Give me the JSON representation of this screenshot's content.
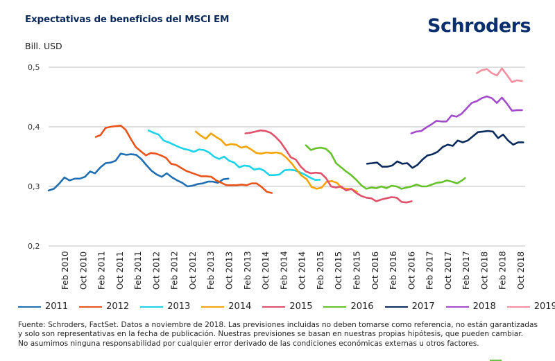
{
  "header": {
    "title": "Expectativas de beneficios del MSCI EM",
    "unit_label": "Bill. USD",
    "logo_text": "Schroders"
  },
  "footnote": {
    "lines": [
      "Fuente: Schroders, FactSet. Datos a noviembre de 2018. Las previsiones incluidas no deben tomarse como referencia, no están garantizadas",
      "y solo son representativas en la fecha de publicación. Nuestras previsiones se basan en nuestras propias hipótesis, que pueden cambiar.",
      "No asumimos ninguna responsabilidad por cualquier error derivado de las condiciones económicas externas u otros factores."
    ]
  },
  "chart_data": {
    "type": "line",
    "title": "Expectativas de beneficios del MSCI EM",
    "ylabel": "Bill. USD",
    "xlabel": "",
    "ylim": [
      0.2,
      0.5
    ],
    "yticks": [
      "0,2",
      "0,3",
      "0,4",
      "0,5"
    ],
    "ytick_values": [
      0.2,
      0.3,
      0.4,
      0.5
    ],
    "grid": "horizontal",
    "legend_position": "bottom",
    "x_unit": "months since Jan 2010 (approximate)",
    "xlim": [
      0,
      108
    ],
    "xtick_labels": [
      "Feb 2010",
      "Oct 2010",
      "Feb 2011",
      "Oct 2011",
      "Feb 2011",
      "Oct 2012",
      "Feb 2012",
      "Oct 2012",
      "Feb 2013",
      "Oct 2013",
      "Feb 2013",
      "Oct 2014",
      "Feb 2014",
      "Oct 2014",
      "Feb 2015",
      "Oct 2015",
      "Feb 2015",
      "Oct 2016",
      "Feb 2016",
      "Oct 2016",
      "Feb 2017",
      "Oct 2017",
      "Feb 2017",
      "Oct 2018",
      "Feb 2018",
      "Oct 2018"
    ],
    "series": [
      {
        "name": "2011",
        "color": "#1f6fb2",
        "points": [
          [
            0,
            0.293
          ],
          [
            1.4,
            0.296
          ],
          [
            2.8,
            0.305
          ],
          [
            4.1,
            0.315
          ],
          [
            5.4,
            0.31
          ],
          [
            6.8,
            0.313
          ],
          [
            8.1,
            0.313
          ],
          [
            9.4,
            0.316
          ],
          [
            10.7,
            0.325
          ],
          [
            12,
            0.322
          ],
          [
            13.4,
            0.332
          ],
          [
            14.7,
            0.339
          ],
          [
            16,
            0.34
          ],
          [
            17.3,
            0.343
          ],
          [
            18.6,
            0.355
          ],
          [
            20,
            0.353
          ],
          [
            21.3,
            0.354
          ],
          [
            22.6,
            0.353
          ],
          [
            23.9,
            0.346
          ],
          [
            25.2,
            0.336
          ],
          [
            26.6,
            0.326
          ],
          [
            27.9,
            0.32
          ],
          [
            29.2,
            0.316
          ],
          [
            30.5,
            0.322
          ],
          [
            31.9,
            0.315
          ],
          [
            33.2,
            0.31
          ],
          [
            34.5,
            0.306
          ],
          [
            35.8,
            0.3
          ],
          [
            37.1,
            0.301
          ],
          [
            38.5,
            0.304
          ],
          [
            39.8,
            0.305
          ],
          [
            41.1,
            0.308
          ],
          [
            42.4,
            0.308
          ],
          [
            43.7,
            0.306
          ],
          [
            45.1,
            0.312
          ],
          [
            46.4,
            0.313
          ]
        ]
      },
      {
        "name": "2012",
        "color": "#e8541a",
        "points": [
          [
            12.2,
            0.383
          ],
          [
            13.4,
            0.386
          ],
          [
            14.7,
            0.398
          ],
          [
            16,
            0.4
          ],
          [
            17.3,
            0.401
          ],
          [
            18.6,
            0.402
          ],
          [
            19.9,
            0.395
          ],
          [
            21.2,
            0.38
          ],
          [
            22.5,
            0.366
          ],
          [
            23.8,
            0.359
          ],
          [
            25.1,
            0.352
          ],
          [
            26.4,
            0.356
          ],
          [
            27.7,
            0.355
          ],
          [
            29,
            0.352
          ],
          [
            30.3,
            0.348
          ],
          [
            31.6,
            0.338
          ],
          [
            32.9,
            0.336
          ],
          [
            34.2,
            0.331
          ],
          [
            35.5,
            0.326
          ],
          [
            36.8,
            0.323
          ],
          [
            38.1,
            0.32
          ],
          [
            39.4,
            0.317
          ],
          [
            40.7,
            0.317
          ],
          [
            42,
            0.316
          ],
          [
            43.3,
            0.31
          ],
          [
            44.6,
            0.306
          ],
          [
            45.9,
            0.302
          ],
          [
            47.2,
            0.302
          ],
          [
            48.5,
            0.302
          ],
          [
            49.8,
            0.303
          ],
          [
            51.1,
            0.302
          ],
          [
            52.4,
            0.305
          ],
          [
            53.7,
            0.305
          ],
          [
            55,
            0.299
          ],
          [
            56.3,
            0.291
          ],
          [
            57.6,
            0.289
          ]
        ]
      },
      {
        "name": "2013",
        "color": "#1ad3e8",
        "points": [
          [
            25.8,
            0.394
          ],
          [
            27.1,
            0.39
          ],
          [
            28.4,
            0.387
          ],
          [
            29.7,
            0.377
          ],
          [
            31,
            0.374
          ],
          [
            32.3,
            0.37
          ],
          [
            33.6,
            0.366
          ],
          [
            34.9,
            0.363
          ],
          [
            36.2,
            0.361
          ],
          [
            37.5,
            0.358
          ],
          [
            38.8,
            0.362
          ],
          [
            40.1,
            0.361
          ],
          [
            41.4,
            0.357
          ],
          [
            42.7,
            0.35
          ],
          [
            44,
            0.346
          ],
          [
            45.3,
            0.35
          ],
          [
            46.6,
            0.343
          ],
          [
            47.9,
            0.34
          ],
          [
            49.2,
            0.332
          ],
          [
            50.5,
            0.335
          ],
          [
            51.8,
            0.334
          ],
          [
            53.1,
            0.328
          ],
          [
            54.4,
            0.33
          ],
          [
            55.7,
            0.326
          ],
          [
            57,
            0.319
          ],
          [
            58.3,
            0.319
          ],
          [
            59.6,
            0.32
          ],
          [
            60.9,
            0.327
          ],
          [
            62.2,
            0.328
          ],
          [
            63.5,
            0.327
          ],
          [
            64.8,
            0.324
          ],
          [
            66.1,
            0.32
          ],
          [
            67.4,
            0.315
          ],
          [
            68.7,
            0.311
          ],
          [
            70,
            0.311
          ]
        ]
      },
      {
        "name": "2014",
        "color": "#f5a300",
        "points": [
          [
            38,
            0.392
          ],
          [
            39.3,
            0.385
          ],
          [
            40.6,
            0.38
          ],
          [
            41.9,
            0.389
          ],
          [
            43.2,
            0.383
          ],
          [
            44.5,
            0.378
          ],
          [
            45.8,
            0.369
          ],
          [
            47.1,
            0.371
          ],
          [
            48.4,
            0.37
          ],
          [
            49.7,
            0.365
          ],
          [
            51,
            0.367
          ],
          [
            52.3,
            0.362
          ],
          [
            53.6,
            0.356
          ],
          [
            54.9,
            0.355
          ],
          [
            56.2,
            0.357
          ],
          [
            57.5,
            0.356
          ],
          [
            58.8,
            0.357
          ],
          [
            60.1,
            0.355
          ],
          [
            61.4,
            0.348
          ],
          [
            62.7,
            0.339
          ],
          [
            64,
            0.328
          ],
          [
            65.3,
            0.318
          ],
          [
            66.6,
            0.312
          ],
          [
            67.9,
            0.299
          ],
          [
            69.2,
            0.296
          ],
          [
            70.5,
            0.298
          ],
          [
            71.8,
            0.308
          ],
          [
            73.1,
            0.309
          ],
          [
            74.4,
            0.306
          ],
          [
            75.7,
            0.297
          ],
          [
            77,
            0.296
          ],
          [
            78.3,
            0.295
          ],
          [
            79.6,
            0.291
          ]
        ]
      },
      {
        "name": "2015",
        "color": "#e0506a",
        "points": [
          [
            50.8,
            0.389
          ],
          [
            52.1,
            0.39
          ],
          [
            53.4,
            0.392
          ],
          [
            54.7,
            0.394
          ],
          [
            56,
            0.393
          ],
          [
            57.3,
            0.39
          ],
          [
            58.6,
            0.383
          ],
          [
            59.9,
            0.374
          ],
          [
            61.2,
            0.362
          ],
          [
            62.5,
            0.349
          ],
          [
            63.8,
            0.345
          ],
          [
            65.1,
            0.333
          ],
          [
            66.4,
            0.325
          ],
          [
            67.7,
            0.322
          ],
          [
            69,
            0.323
          ],
          [
            70.3,
            0.322
          ],
          [
            71.6,
            0.314
          ],
          [
            72.9,
            0.3
          ],
          [
            74.2,
            0.298
          ],
          [
            75.5,
            0.3
          ],
          [
            76.8,
            0.293
          ],
          [
            78.1,
            0.296
          ],
          [
            79.4,
            0.289
          ],
          [
            80.7,
            0.284
          ],
          [
            82,
            0.281
          ],
          [
            83.3,
            0.28
          ],
          [
            84.6,
            0.275
          ],
          [
            85.9,
            0.278
          ],
          [
            87.2,
            0.28
          ],
          [
            88.5,
            0.282
          ],
          [
            89.8,
            0.281
          ],
          [
            91.1,
            0.274
          ],
          [
            92.4,
            0.273
          ],
          [
            93.7,
            0.275
          ]
        ]
      },
      {
        "name": "2016",
        "color": "#66c22a",
        "points": [
          [
            66.4,
            0.369
          ],
          [
            67.7,
            0.361
          ],
          [
            69,
            0.364
          ],
          [
            70.3,
            0.365
          ],
          [
            71.6,
            0.363
          ],
          [
            72.9,
            0.355
          ],
          [
            74.2,
            0.339
          ],
          [
            75.5,
            0.332
          ],
          [
            76.8,
            0.325
          ],
          [
            78.1,
            0.319
          ],
          [
            79.4,
            0.311
          ],
          [
            80.7,
            0.302
          ],
          [
            82,
            0.296
          ],
          [
            83.3,
            0.298
          ],
          [
            84.6,
            0.297
          ],
          [
            85.9,
            0.3
          ],
          [
            87.2,
            0.297
          ],
          [
            88.5,
            0.301
          ],
          [
            89.8,
            0.3
          ],
          [
            91.1,
            0.296
          ],
          [
            92.4,
            0.298
          ],
          [
            93.7,
            0.3
          ],
          [
            95,
            0.303
          ],
          [
            96.3,
            0.3
          ],
          [
            97.6,
            0.3
          ],
          [
            98.9,
            0.303
          ],
          [
            100.2,
            0.306
          ],
          [
            101.5,
            0.307
          ],
          [
            102.8,
            0.31
          ],
          [
            104.1,
            0.308
          ],
          [
            105.4,
            0.305
          ],
          [
            106.7,
            0.31
          ],
          [
            107.5,
            0.314
          ]
        ]
      },
      {
        "name": "2017",
        "color": "#0b2a5c",
        "points": [
          [
            82.2,
            0.338
          ],
          [
            83.5,
            0.339
          ],
          [
            84.8,
            0.34
          ],
          [
            86.1,
            0.333
          ],
          [
            87.4,
            0.333
          ],
          [
            88.7,
            0.335
          ],
          [
            90,
            0.342
          ],
          [
            91.3,
            0.338
          ],
          [
            92.6,
            0.339
          ],
          [
            93.9,
            0.331
          ],
          [
            95.2,
            0.336
          ],
          [
            96.5,
            0.345
          ],
          [
            97.8,
            0.352
          ],
          [
            99.1,
            0.354
          ],
          [
            100.4,
            0.358
          ],
          [
            101.7,
            0.366
          ],
          [
            103,
            0.37
          ],
          [
            104.3,
            0.368
          ],
          [
            105.6,
            0.377
          ],
          [
            106.9,
            0.374
          ],
          [
            108.2,
            0.377
          ],
          [
            109.5,
            0.384
          ],
          [
            110.8,
            0.391
          ],
          [
            112.1,
            0.392
          ],
          [
            113.4,
            0.393
          ],
          [
            114.7,
            0.392
          ],
          [
            116,
            0.381
          ],
          [
            117.3,
            0.387
          ],
          [
            118.6,
            0.377
          ],
          [
            119.9,
            0.37
          ],
          [
            121.2,
            0.374
          ],
          [
            122.5,
            0.374
          ]
        ]
      },
      {
        "name": "2018",
        "color": "#a24ccc",
        "points": [
          [
            93.6,
            0.389
          ],
          [
            94.9,
            0.392
          ],
          [
            96.2,
            0.393
          ],
          [
            97.5,
            0.399
          ],
          [
            98.8,
            0.404
          ],
          [
            100.1,
            0.41
          ],
          [
            101.4,
            0.409
          ],
          [
            102.7,
            0.409
          ],
          [
            104,
            0.419
          ],
          [
            105.3,
            0.417
          ],
          [
            106.6,
            0.422
          ],
          [
            107.9,
            0.431
          ],
          [
            109.2,
            0.44
          ],
          [
            110.5,
            0.443
          ],
          [
            111.8,
            0.448
          ],
          [
            113.1,
            0.451
          ],
          [
            114.4,
            0.448
          ],
          [
            115.7,
            0.44
          ],
          [
            117,
            0.449
          ],
          [
            118.3,
            0.439
          ],
          [
            119.6,
            0.427
          ],
          [
            120.9,
            0.428
          ],
          [
            122.2,
            0.428
          ]
        ]
      },
      {
        "name": "2019",
        "color": "#f38fa0",
        "points": [
          [
            110.5,
            0.49
          ],
          [
            111.8,
            0.495
          ],
          [
            113.1,
            0.497
          ],
          [
            114.4,
            0.49
          ],
          [
            115.7,
            0.486
          ],
          [
            117,
            0.498
          ],
          [
            118.3,
            0.487
          ],
          [
            119.6,
            0.475
          ],
          [
            120.9,
            0.478
          ],
          [
            122.2,
            0.477
          ]
        ]
      }
    ]
  }
}
